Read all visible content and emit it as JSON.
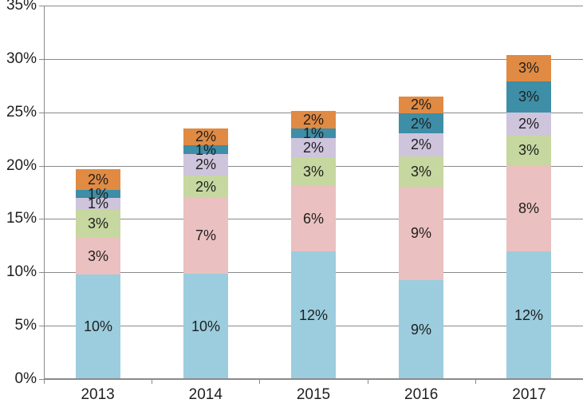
{
  "chart_data": {
    "type": "bar",
    "stacked": true,
    "title": "",
    "xlabel": "",
    "ylabel": "",
    "legend": "none",
    "grid": true,
    "ylim": [
      0,
      35
    ],
    "y_tick_step": 5,
    "y_ticks": [
      "0%",
      "5%",
      "10%",
      "15%",
      "20%",
      "25%",
      "30%",
      "35%"
    ],
    "categories": [
      "2013",
      "2014",
      "2015",
      "2016",
      "2017"
    ],
    "series": [
      {
        "name": "light-blue",
        "color": "#9BCDDE",
        "labels": [
          "10%",
          "10%",
          "12%",
          "9%",
          "12%"
        ],
        "values": [
          9.8,
          9.9,
          12.0,
          9.3,
          12.0
        ]
      },
      {
        "name": "pink",
        "color": "#EBC0C0",
        "labels": [
          "3%",
          "7%",
          "6%",
          "9%",
          "8%"
        ],
        "values": [
          3.4,
          7.1,
          6.1,
          8.7,
          8.0
        ]
      },
      {
        "name": "green",
        "color": "#C6D79F",
        "labels": [
          "3%",
          "2%",
          "3%",
          "3%",
          "3%"
        ],
        "values": [
          2.7,
          2.1,
          2.7,
          2.9,
          2.9
        ]
      },
      {
        "name": "lavender",
        "color": "#CEC4DC",
        "labels": [
          "1%",
          "2%",
          "2%",
          "2%",
          "2%"
        ],
        "values": [
          1.1,
          2.0,
          1.8,
          2.1,
          2.1
        ]
      },
      {
        "name": "teal",
        "color": "#3D8EA6",
        "labels": [
          "1%",
          "1%",
          "1%",
          "2%",
          "3%"
        ],
        "values": [
          0.75,
          0.8,
          0.9,
          1.9,
          2.9
        ]
      },
      {
        "name": "orange",
        "color": "#E08A43",
        "labels": [
          "2%",
          "2%",
          "2%",
          "2%",
          "3%"
        ],
        "values": [
          1.9,
          1.6,
          1.6,
          1.6,
          2.5
        ]
      }
    ],
    "label_color": "#1f1f1f",
    "grid_color": "#8a8a8a",
    "background": "#ffffff"
  }
}
